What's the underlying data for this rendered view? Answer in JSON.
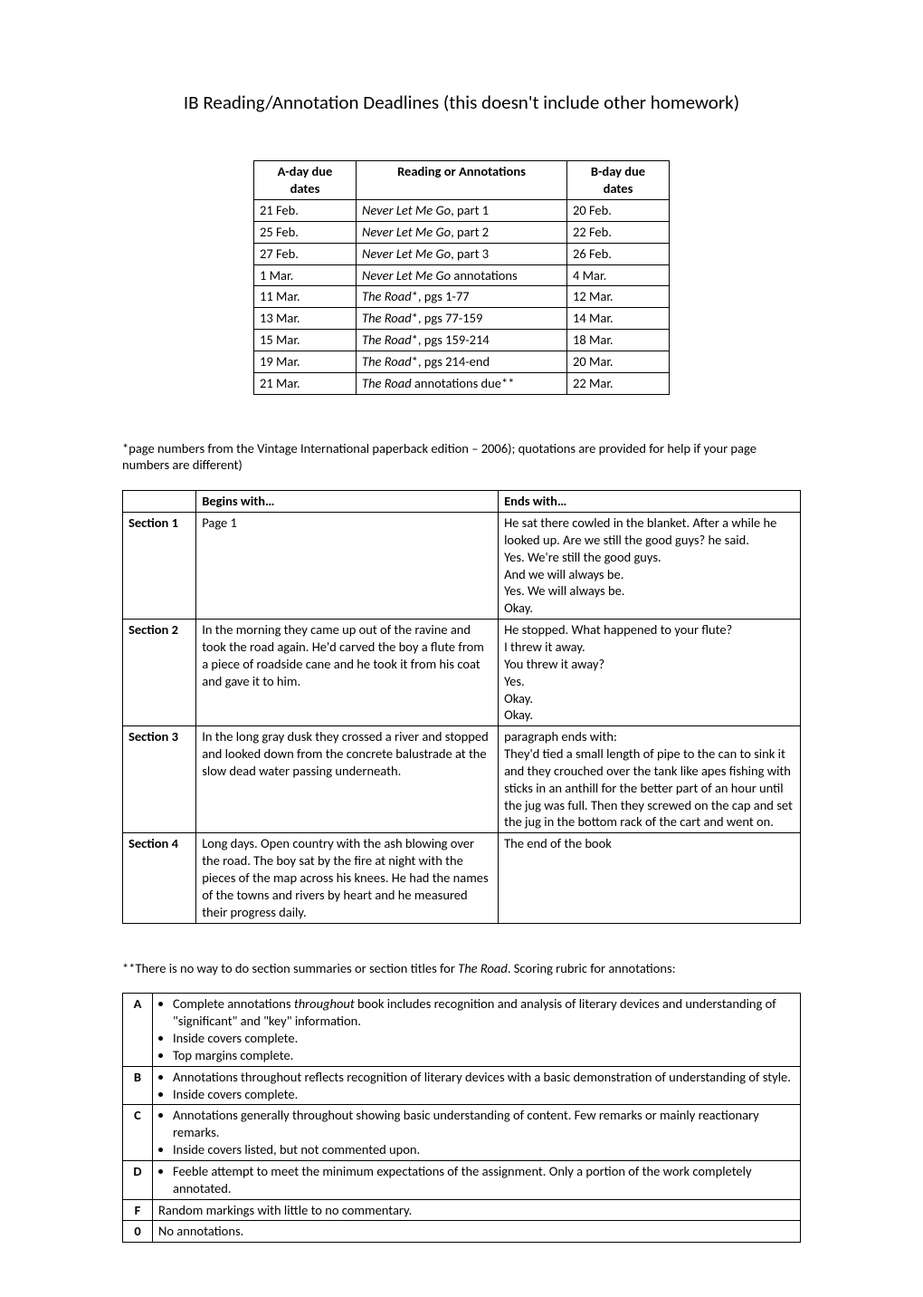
{
  "title": "IB Reading/Annotation Deadlines (this doesn't include other homework)",
  "deadlines": {
    "headers": [
      "A-day due dates",
      "Reading or Annotations",
      "B-day due dates"
    ],
    "rows": [
      {
        "a": "21 Feb.",
        "reading_italic": "Never Let Me Go",
        "reading_rest": ", part 1",
        "b": "20 Feb."
      },
      {
        "a": "25 Feb.",
        "reading_italic": "Never Let Me Go",
        "reading_rest": ", part 2",
        "b": "22 Feb."
      },
      {
        "a": "27 Feb.",
        "reading_italic": "Never Let Me Go",
        "reading_rest": ", part 3",
        "b": "26 Feb."
      },
      {
        "a": "1 Mar.",
        "reading_italic": "Never Let Me Go",
        "reading_rest": " annotations",
        "b": "4 Mar."
      },
      {
        "a": "11 Mar.",
        "reading_italic": "The Road",
        "reading_rest": "*, pgs 1-77",
        "b": "12 Mar."
      },
      {
        "a": "13 Mar.",
        "reading_italic": "The Road",
        "reading_rest": "*, pgs 77-159",
        "b": "14 Mar."
      },
      {
        "a": "15 Mar.",
        "reading_italic": "The Road",
        "reading_rest": "*, pgs 159-214",
        "b": "18 Mar."
      },
      {
        "a": "19 Mar.",
        "reading_italic": "The Road",
        "reading_rest": "*, pgs 214-end",
        "b": "20 Mar."
      },
      {
        "a": "21 Mar.",
        "reading_italic": "The Road",
        "reading_rest": " annotations due**",
        "b": "22 Mar."
      }
    ]
  },
  "note1": "*page numbers from the Vintage International paperback edition – 2006); quotations are provided for help if your page numbers are different)",
  "sections": {
    "headers": [
      "",
      "Begins with…",
      "Ends with…"
    ],
    "rows": [
      {
        "label": "Section 1",
        "begins": "Page 1",
        "ends": [
          "He sat there cowled in the blanket.  After a while he looked up.  Are we still the good guys? he said.",
          "Yes.  We're still the good guys.",
          "And we will always be.",
          "Yes.  We will always be.",
          "Okay."
        ]
      },
      {
        "label": "Section 2",
        "begins": "In the morning they came up out of the ravine and took the road again.  He'd carved the boy a flute from a piece of roadside cane and he took it from his coat and gave it to him.",
        "ends": [
          "He stopped.  What happened to your flute?",
          "I threw it away.",
          "You threw it away?",
          "Yes.",
          "Okay.",
          "Okay."
        ]
      },
      {
        "label": "Section 3",
        "begins": "In the long gray dusk they crossed a river and stopped and looked down from the concrete balustrade at the slow dead water passing underneath.",
        "ends": [
          "paragraph ends with:",
          "They'd tied a small length of pipe to the can to sink it and they crouched over the tank like apes fishing with sticks in an anthill for the better part of an hour until the jug was full.  Then they screwed on the cap and set the jug in the bottom rack of the cart and went on."
        ]
      },
      {
        "label": "Section 4",
        "begins": "Long days.  Open country with the ash blowing over the road.  The boy sat by the fire at night with the pieces of the map across his knees.  He had the names of the towns and rivers by heart and he measured their progress daily.",
        "ends": [
          "The end of the book"
        ]
      }
    ]
  },
  "note2_pre": "**There is no way to do section summaries or section titles for ",
  "note2_italic": "The Road",
  "note2_post": ".  Scoring rubric for annotations:",
  "rubric": [
    {
      "grade": "A",
      "items": [
        {
          "pre": "Complete annotations ",
          "italic": "throughout",
          "post": " book includes recognition and analysis of literary devices and understanding of \"significant\" and \"key\" information."
        },
        {
          "pre": "Inside covers complete.",
          "italic": "",
          "post": ""
        },
        {
          "pre": "Top margins complete.",
          "italic": "",
          "post": ""
        }
      ]
    },
    {
      "grade": "B",
      "items": [
        {
          "pre": "Annotations throughout reflects recognition of literary devices with a basic demonstration of understanding of style.",
          "italic": "",
          "post": ""
        },
        {
          "pre": "Inside covers complete.",
          "italic": "",
          "post": ""
        }
      ]
    },
    {
      "grade": "C",
      "items": [
        {
          "pre": "Annotations generally throughout showing basic understanding of content.  Few remarks or mainly reactionary remarks.",
          "italic": "",
          "post": ""
        },
        {
          "pre": "Inside covers listed, but not commented upon.",
          "italic": "",
          "post": ""
        }
      ]
    },
    {
      "grade": "D",
      "items": [
        {
          "pre": "Feeble attempt to meet the minimum expectations of the assignment.  Only a portion of the work completely annotated.",
          "italic": "",
          "post": ""
        }
      ]
    },
    {
      "grade": "F",
      "plain": "Random markings with little to no commentary."
    },
    {
      "grade": "0",
      "plain": "No annotations."
    }
  ]
}
